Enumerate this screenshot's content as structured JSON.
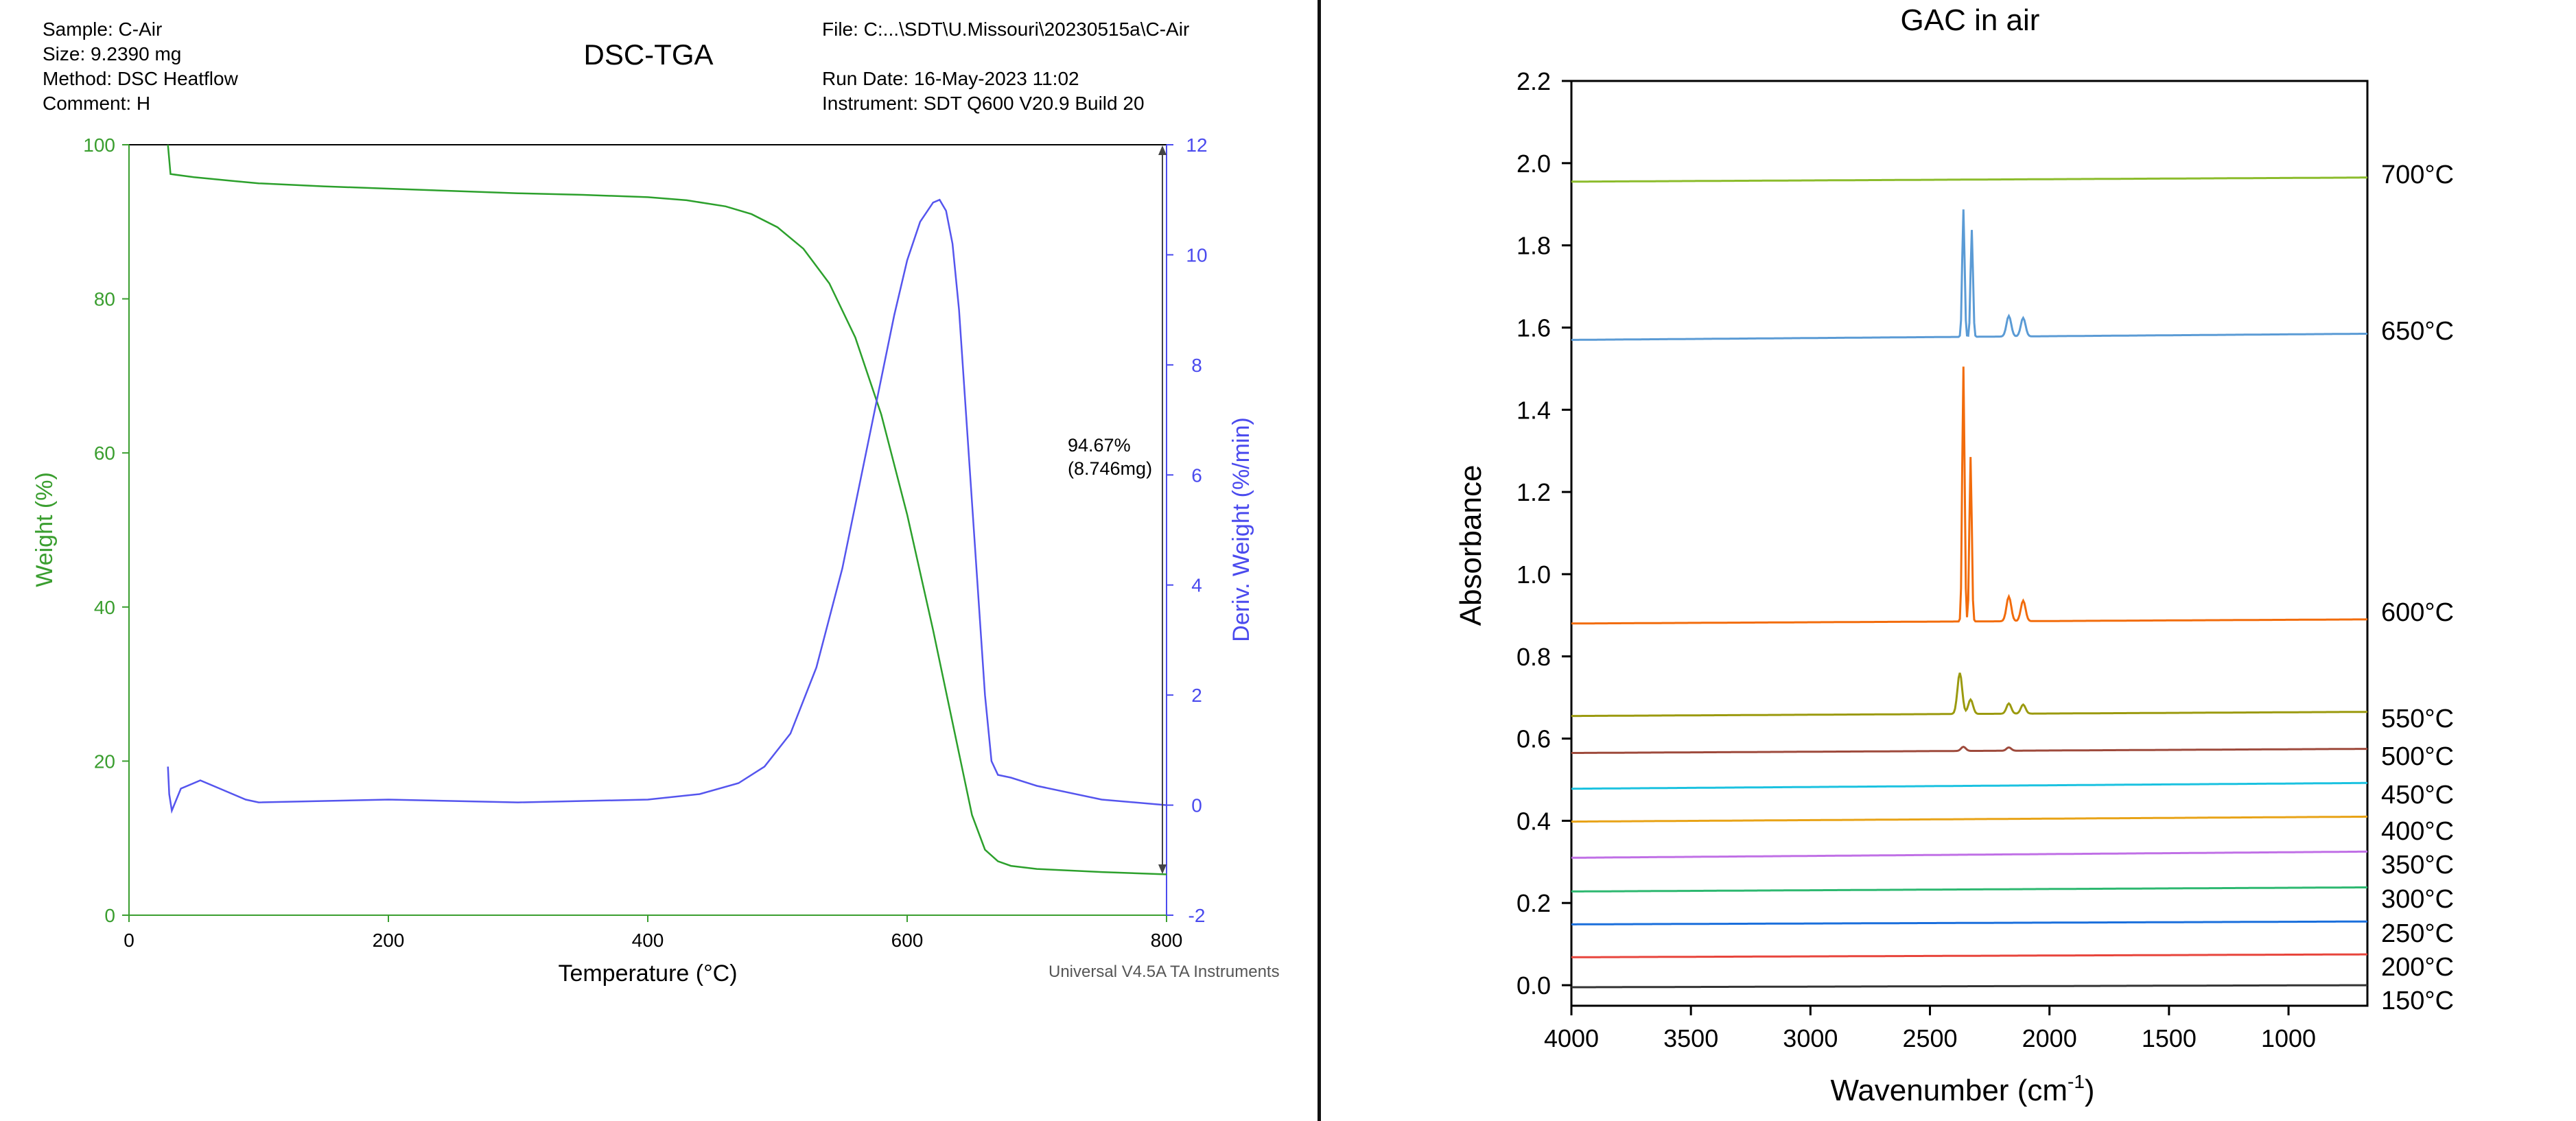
{
  "dsc_tga": {
    "header": {
      "sample": "Sample: C-Air",
      "size": "Size:  9.2390 mg",
      "method": "Method: DSC Heatflow",
      "comment": "Comment: H",
      "title": "DSC-TGA",
      "file": "File: C:...\\SDT\\U.Missouri\\20230515a\\C-Air",
      "run_date": "Run Date: 16-May-2023 11:02",
      "instrument": "Instrument: SDT Q600 V20.9 Build 20"
    },
    "annotation": {
      "line1": "94.67%",
      "line2": "(8.746mg)"
    },
    "footer": "Universal V4.5A TA Instruments",
    "colors": {
      "weight": "#2ca02c",
      "weight_axis": "#3a9e2f",
      "deriv": "#5555ee",
      "deriv_axis": "#4a4aee",
      "frame": "#000000"
    }
  },
  "chart_data": [
    {
      "type": "line",
      "title": "DSC-TGA",
      "xlabel": "Temperature (°C)",
      "ylabel": "Weight (%)",
      "y2label": "Deriv. Weight (%/min)",
      "xlim": [
        0,
        800
      ],
      "ylim": [
        0,
        100
      ],
      "y2lim": [
        -2,
        12
      ],
      "x_ticks": [
        "0",
        "200",
        "400",
        "600",
        "800"
      ],
      "y_ticks": [
        "0",
        "20",
        "40",
        "60",
        "80",
        "100"
      ],
      "y2_ticks": [
        "-2",
        "0",
        "2",
        "4",
        "6",
        "8",
        "10",
        "12"
      ],
      "grid": false,
      "series": [
        {
          "axis": "left",
          "x": [
            30,
            32,
            50,
            80,
            100,
            150,
            200,
            250,
            300,
            350,
            400,
            430,
            460,
            480,
            500,
            520,
            540,
            560,
            580,
            600,
            620,
            640,
            650,
            660,
            670,
            680,
            700,
            750,
            800
          ],
          "y": [
            100,
            96.2,
            95.8,
            95.3,
            95.0,
            94.6,
            94.3,
            94.0,
            93.7,
            93.5,
            93.2,
            92.8,
            92.0,
            91.0,
            89.3,
            86.5,
            82,
            75,
            65,
            52,
            37,
            21,
            13,
            8.5,
            7,
            6.4,
            6.0,
            5.6,
            5.3
          ]
        },
        {
          "axis": "right",
          "x": [
            30,
            31,
            33,
            40,
            55,
            70,
            90,
            100,
            200,
            300,
            400,
            440,
            470,
            490,
            510,
            530,
            550,
            570,
            590,
            600,
            610,
            620,
            625,
            630,
            635,
            640,
            650,
            660,
            665,
            670,
            680,
            700,
            750,
            800
          ],
          "y": [
            0.7,
            0.2,
            -0.1,
            0.3,
            0.45,
            0.3,
            0.1,
            0.05,
            0.1,
            0.05,
            0.1,
            0.2,
            0.4,
            0.7,
            1.3,
            2.5,
            4.3,
            6.6,
            8.9,
            9.9,
            10.6,
            10.95,
            11.0,
            10.8,
            10.2,
            9.0,
            5.5,
            2.0,
            0.8,
            0.55,
            0.5,
            0.35,
            0.1,
            0.0
          ]
        }
      ]
    },
    {
      "type": "line",
      "title": "GAC in air",
      "xlabel": "Wavenumber (cm",
      "xlabel_sup": "-1",
      "xlabel_end": ")",
      "ylabel": "Absorbance",
      "xlim": [
        4000,
        670
      ],
      "ylim": [
        -0.05,
        2.2
      ],
      "x_ticks": [
        "4000",
        "3500",
        "3000",
        "2500",
        "2000",
        "1500",
        "1000"
      ],
      "y_ticks": [
        "0.0",
        "0.2",
        "0.4",
        "0.6",
        "0.8",
        "1.0",
        "1.2",
        "1.4",
        "1.6",
        "1.8",
        "2.0",
        "2.2"
      ],
      "grid": false,
      "series": [
        {
          "name": "150°C",
          "color": "#333333",
          "baseline": -0.005,
          "end": 0.0,
          "peaks": []
        },
        {
          "name": "200°C",
          "color": "#e8453c",
          "baseline": 0.068,
          "end": 0.075,
          "peaks": []
        },
        {
          "name": "250°C",
          "color": "#1a6fdc",
          "baseline": 0.148,
          "end": 0.155,
          "peaks": []
        },
        {
          "name": "300°C",
          "color": "#2db870",
          "baseline": 0.228,
          "end": 0.238,
          "peaks": []
        },
        {
          "name": "350°C",
          "color": "#c070e6",
          "baseline": 0.31,
          "end": 0.325,
          "peaks": []
        },
        {
          "name": "400°C",
          "color": "#e8a317",
          "baseline": 0.398,
          "end": 0.41,
          "peaks": []
        },
        {
          "name": "450°C",
          "color": "#1bc2e0",
          "baseline": 0.478,
          "end": 0.492,
          "peaks": []
        },
        {
          "name": "500°C",
          "color": "#9e4a3c",
          "baseline": 0.565,
          "end": 0.575,
          "peaks": [
            [
              2360,
              0.01
            ],
            [
              2170,
              0.008
            ]
          ]
        },
        {
          "name": "550°C",
          "color": "#9b9a0f",
          "baseline": 0.655,
          "end": 0.665,
          "peaks": [
            [
              2375,
              0.1
            ],
            [
              2330,
              0.035
            ],
            [
              2170,
              0.025
            ],
            [
              2110,
              0.022
            ]
          ]
        },
        {
          "name": "600°C",
          "color": "#f26c0c",
          "baseline": 0.88,
          "end": 0.89,
          "peaks": [
            [
              2360,
              0.62
            ],
            [
              2330,
              0.4
            ],
            [
              2170,
              0.06
            ],
            [
              2110,
              0.05
            ]
          ]
        },
        {
          "name": "650°C",
          "color": "#5b9bd5",
          "baseline": 1.57,
          "end": 1.585,
          "peaks": [
            [
              2360,
              0.31
            ],
            [
              2325,
              0.26
            ],
            [
              2170,
              0.05
            ],
            [
              2110,
              0.045
            ]
          ]
        },
        {
          "name": "700°C",
          "color": "#8cbc2c",
          "baseline": 1.955,
          "end": 1.965,
          "peaks": []
        }
      ]
    }
  ]
}
